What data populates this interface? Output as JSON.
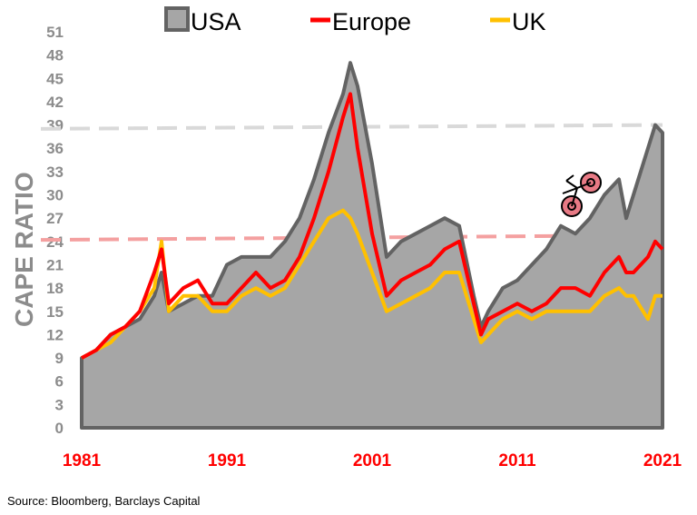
{
  "chart_data": {
    "type": "line",
    "ylabel": "CAPE RATIO",
    "xlabel": "",
    "ylim": [
      0,
      51
    ],
    "xlim": [
      1981,
      2021
    ],
    "yticks": [
      "0",
      "3",
      "6",
      "9",
      "12",
      "15",
      "18",
      "21",
      "24",
      "27",
      "30",
      "33",
      "36",
      "39",
      "42",
      "45",
      "48",
      "51"
    ],
    "xticks": [
      "1981",
      "1991",
      "2001",
      "2011",
      "2021"
    ],
    "legend_position": "top",
    "source": "Source: Bloomberg, Barclays Capital",
    "colors": {
      "USA": "#636363",
      "USA_fill": "#a6a6a6",
      "Europe": "#ff0000",
      "UK": "#ffc000",
      "ref_usa": "#d9d9d9",
      "ref_europe": "#f4a0a0"
    },
    "reference_lines": [
      {
        "series": "USA",
        "from": [
          1981,
          38.5
        ],
        "to": [
          2021,
          39
        ]
      },
      {
        "series": "Europe",
        "from": [
          1981,
          24.2
        ],
        "to": [
          2021,
          24.8
        ]
      }
    ],
    "series": [
      {
        "name": "USA",
        "style": "area",
        "x": [
          1981,
          1982,
          1983,
          1984,
          1985,
          1986,
          1986.5,
          1987,
          1988,
          1989,
          1990,
          1991,
          1992,
          1993,
          1994,
          1995,
          1996,
          1997,
          1998,
          1999,
          1999.5,
          2000,
          2001,
          2002,
          2003,
          2004,
          2005,
          2006,
          2007,
          2008,
          2008.5,
          2009,
          2010,
          2011,
          2012,
          2013,
          2014,
          2015,
          2016,
          2017,
          2018,
          2018.5,
          2019,
          2020,
          2020.5,
          2021
        ],
        "y": [
          9,
          10,
          12,
          13,
          14,
          17,
          20,
          15,
          16,
          17,
          17,
          21,
          22,
          22,
          22,
          24,
          27,
          32,
          38,
          43,
          47,
          44,
          34,
          22,
          24,
          25,
          26,
          27,
          26,
          17,
          13,
          15,
          18,
          19,
          21,
          23,
          26,
          25,
          27,
          30,
          32,
          27,
          30,
          36,
          39,
          38
        ]
      },
      {
        "name": "Europe",
        "style": "line",
        "x": [
          1981,
          1982,
          1983,
          1984,
          1985,
          1986,
          1986.5,
          1987,
          1988,
          1989,
          1990,
          1991,
          1992,
          1993,
          1994,
          1995,
          1996,
          1997,
          1998,
          1999,
          1999.5,
          2000,
          2001,
          2002,
          2003,
          2004,
          2005,
          2006,
          2007,
          2008,
          2008.5,
          2009,
          2010,
          2011,
          2012,
          2013,
          2014,
          2015,
          2016,
          2017,
          2018,
          2018.5,
          2019,
          2020,
          2020.5,
          2021
        ],
        "y": [
          9,
          10,
          12,
          13,
          15,
          20,
          23,
          16,
          18,
          19,
          16,
          16,
          18,
          20,
          18,
          19,
          22,
          27,
          33,
          40,
          43,
          36,
          25,
          17,
          19,
          20,
          21,
          23,
          24,
          16,
          12,
          14,
          15,
          16,
          15,
          16,
          18,
          18,
          17,
          20,
          22,
          20,
          20,
          22,
          24,
          23
        ]
      },
      {
        "name": "UK",
        "style": "line",
        "x": [
          1981,
          1982,
          1983,
          1984,
          1985,
          1986,
          1986.5,
          1987,
          1988,
          1989,
          1990,
          1991,
          1992,
          1993,
          1994,
          1995,
          1996,
          1997,
          1998,
          1999,
          1999.5,
          2000,
          2001,
          2002,
          2003,
          2004,
          2005,
          2006,
          2007,
          2008,
          2008.5,
          2009,
          2010,
          2011,
          2012,
          2013,
          2014,
          2015,
          2016,
          2017,
          2018,
          2018.5,
          2019,
          2020,
          2020.5,
          2021
        ],
        "y": [
          9,
          10,
          11,
          13,
          15,
          18,
          24,
          15,
          17,
          17,
          15,
          15,
          17,
          18,
          17,
          18,
          21,
          24,
          27,
          28,
          27,
          25,
          20,
          15,
          16,
          17,
          18,
          20,
          20,
          14,
          11,
          12,
          14,
          15,
          14,
          15,
          15,
          15,
          15,
          17,
          18,
          17,
          17,
          14,
          17,
          17
        ]
      }
    ]
  },
  "decoration": {
    "icon": "bicycle-icon"
  }
}
